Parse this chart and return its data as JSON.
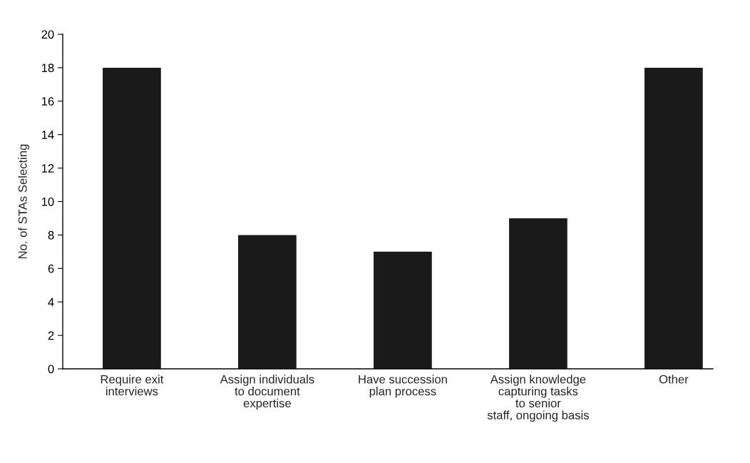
{
  "chart_data": {
    "type": "bar",
    "ylabel": "No. of STAs Selecting",
    "categories": [
      "Require exit\ninterviews",
      "Assign individuals\nto document\nexpertise",
      "Have succession\nplan process",
      "Assign knowledge\ncapturing tasks\nto senior\nstaff, ongoing basis",
      "Other"
    ],
    "values": [
      18,
      8,
      7,
      9,
      18
    ],
    "color": "#1a1a1a",
    "ylim": [
      0,
      20
    ],
    "yticks": [
      0,
      2,
      4,
      6,
      8,
      10,
      12,
      14,
      16,
      18,
      20
    ],
    "grid": false
  }
}
